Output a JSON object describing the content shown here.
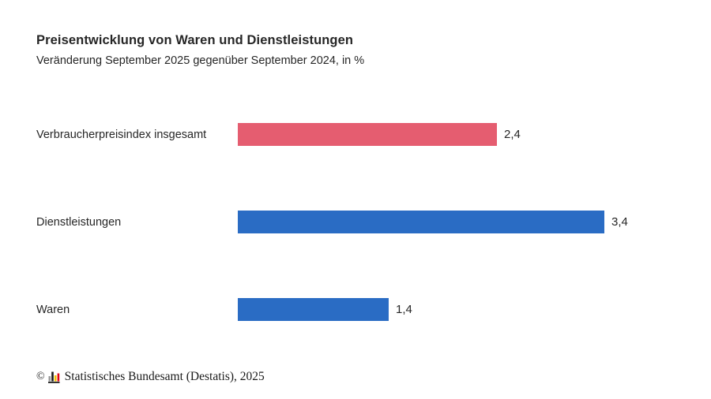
{
  "title": "Preisentwicklung von Waren und Dienstleistungen",
  "subtitle": "Veränderung September 2025 gegenüber September 2024, in %",
  "chart_data": {
    "type": "bar",
    "orientation": "horizontal",
    "categories": [
      "Verbraucherpreisindex insgesamt",
      "Dienstleistungen",
      "Waren"
    ],
    "values": [
      2.4,
      3.4,
      1.4
    ],
    "value_labels": [
      "2,4",
      "3,4",
      "1,4"
    ],
    "bar_colors": [
      "#e55d70",
      "#2a6cc4",
      "#2a6cc4"
    ],
    "title": "Preisentwicklung von Waren und Dienstleistungen",
    "subtitle": "Veränderung September 2025 gegenüber September 2024, in %",
    "xlabel": "",
    "ylabel": "",
    "xlim": [
      0,
      3.9
    ],
    "grid": false,
    "legend": false,
    "data_labels": "outside-end"
  },
  "footer": {
    "copyright_symbol": "©",
    "text": "Statistisches Bundesamt (Destatis), 2025",
    "logo_icon": "destatis-bar-chart-logo",
    "logo_colors": {
      "gray": "#9a9a9a",
      "black": "#1a1a1a",
      "gold": "#f0c400",
      "red": "#e30613"
    }
  },
  "colors": {
    "background": "#ffffff",
    "text": "#262626",
    "highlight_bar": "#e55d70",
    "default_bar": "#2a6cc4"
  }
}
